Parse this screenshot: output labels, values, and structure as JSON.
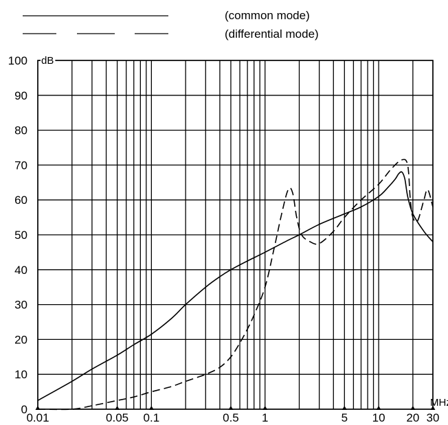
{
  "chart_data": {
    "type": "line",
    "x_scale": "log",
    "xlim": [
      0.01,
      30
    ],
    "ylim": [
      0,
      100
    ],
    "grid": true,
    "legend_position": "top",
    "x_unit": "MHz",
    "y_unit": "dB",
    "x_ticks": [
      0.01,
      0.05,
      0.1,
      0.5,
      1,
      5,
      10,
      20,
      30
    ],
    "x_tick_labels": [
      "0.01",
      "0.05",
      "0.1",
      "0.5",
      "1",
      "5",
      "10",
      "20",
      "30"
    ],
    "y_ticks": [
      0,
      10,
      20,
      30,
      40,
      50,
      60,
      70,
      80,
      90,
      100
    ],
    "y_tick_labels": [
      "0",
      "10",
      "20",
      "30",
      "40",
      "50",
      "60",
      "70",
      "80",
      "90",
      "100"
    ],
    "series": [
      {
        "name": "(common mode)",
        "style": "solid",
        "x": [
          0.01,
          0.02,
          0.03,
          0.05,
          0.07,
          0.1,
          0.15,
          0.2,
          0.3,
          0.4,
          0.5,
          0.7,
          1,
          1.5,
          2,
          3,
          5,
          7,
          10,
          12,
          14,
          15,
          16,
          17,
          18,
          20,
          25,
          30
        ],
        "y": [
          2.5,
          8,
          11.5,
          15.5,
          18.5,
          21.5,
          26,
          30,
          35,
          38,
          40,
          42.5,
          45,
          48,
          50,
          53,
          56,
          58,
          61,
          63.5,
          66,
          67.5,
          68,
          66,
          61,
          56,
          51,
          48
        ]
      },
      {
        "name": "(differential mode)",
        "style": "dashed",
        "x": [
          0.01,
          0.02,
          0.03,
          0.05,
          0.07,
          0.1,
          0.15,
          0.2,
          0.3,
          0.4,
          0.5,
          0.6,
          0.7,
          0.8,
          1,
          1.2,
          1.4,
          1.6,
          1.75,
          1.9,
          2.1,
          2.5,
          3,
          4,
          5,
          7,
          10,
          13,
          16,
          18,
          19,
          20,
          22,
          25,
          27,
          30
        ],
        "y": [
          0,
          0,
          1,
          2.5,
          3.5,
          5,
          6.5,
          8,
          10,
          12,
          15,
          19,
          23,
          27,
          35,
          46,
          56,
          63,
          62,
          55,
          50,
          48,
          47.5,
          51,
          55,
          60,
          64.5,
          69,
          71.5,
          70,
          60,
          55,
          54,
          60,
          63,
          58
        ]
      }
    ]
  }
}
